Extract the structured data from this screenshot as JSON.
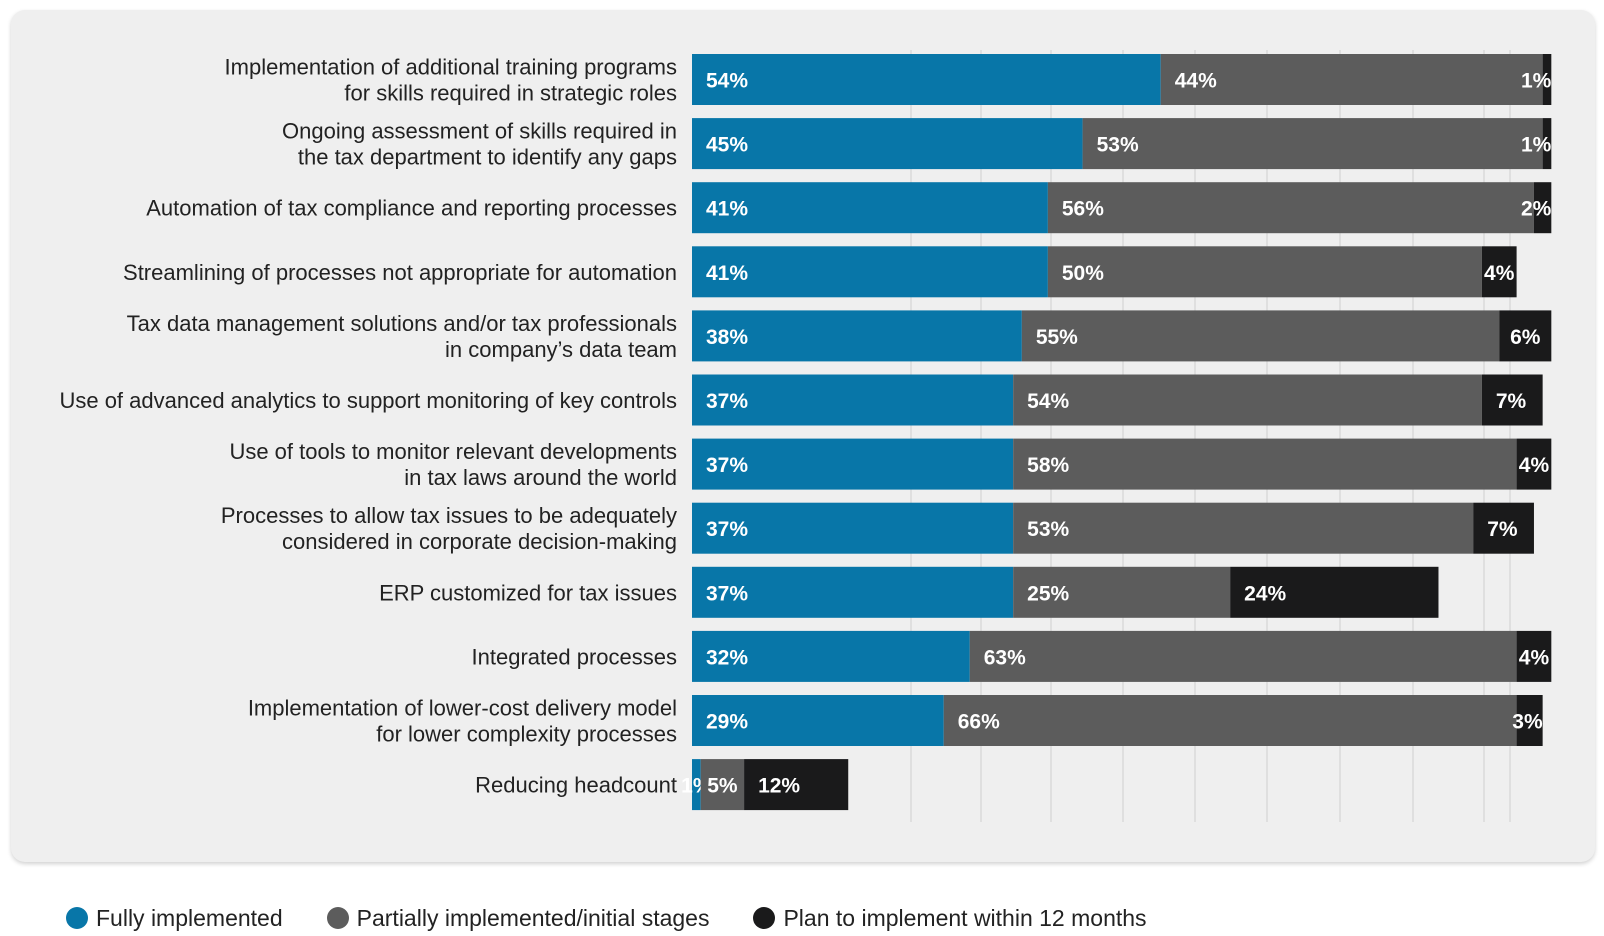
{
  "chart_data": {
    "type": "bar",
    "orientation": "horizontal",
    "stacked": true,
    "title": "",
    "xlabel": "",
    "ylabel": "",
    "xlim": [
      0,
      100
    ],
    "grid": true,
    "legend_position": "bottom-left",
    "categories": [
      [
        "Implementation of additional training programs",
        "for skills required in strategic roles"
      ],
      [
        "Ongoing assessment of skills required in",
        "the tax department to identify any gaps"
      ],
      [
        "Automation of tax compliance and reporting processes"
      ],
      [
        "Streamlining of processes not appropriate for automation"
      ],
      [
        "Tax data management solutions and/or tax professionals",
        "in company’s data team"
      ],
      [
        "Use of advanced analytics to support monitoring of key controls"
      ],
      [
        "Use of tools to monitor relevant developments",
        "in tax laws around the world"
      ],
      [
        "Processes to allow tax issues to be adequately",
        "considered in corporate decision-making"
      ],
      [
        "ERP customized for tax issues"
      ],
      [
        "Integrated processes"
      ],
      [
        "Implementation of lower-cost delivery model",
        "for lower complexity processes"
      ],
      [
        "Reducing headcount"
      ]
    ],
    "series": [
      {
        "name": "Fully implemented",
        "color": "#0876a8",
        "values": [
          54,
          45,
          41,
          41,
          38,
          37,
          37,
          37,
          37,
          32,
          29,
          1
        ],
        "labels": [
          "54%",
          "45%",
          "41%",
          "41%",
          "38%",
          "37%",
          "37%",
          "37%",
          "37%",
          "32%",
          "29%",
          "1%"
        ]
      },
      {
        "name": "Partially implemented/initial stages",
        "color": "#5c5c5c",
        "values": [
          44,
          53,
          56,
          50,
          55,
          54,
          58,
          53,
          25,
          63,
          66,
          5
        ],
        "labels": [
          "44%",
          "53%",
          "56%",
          "50%",
          "55%",
          "54%",
          "58%",
          "53%",
          "25%",
          "63%",
          "66%",
          "5%"
        ]
      },
      {
        "name": "Plan to implement within 12 months",
        "color": "#1a1a1b",
        "values": [
          1,
          1,
          2,
          4,
          6,
          7,
          4,
          7,
          24,
          4,
          3,
          12
        ],
        "labels": [
          "1%",
          "1%",
          "2%",
          "4%",
          "6%",
          "7%",
          "4%",
          "7%",
          "24%",
          "4%",
          "3%",
          "12%"
        ]
      }
    ]
  },
  "colors": {
    "panel_background": "#efefef",
    "gridline": "#dadada",
    "label_text": "#222222",
    "bar_label_text": "#ffffff"
  }
}
